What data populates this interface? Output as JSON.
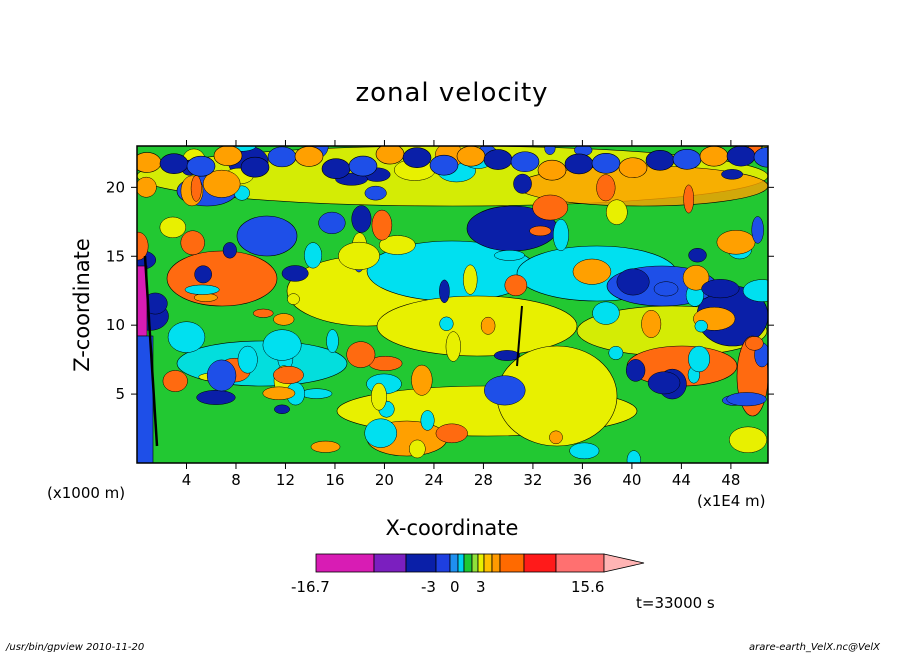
{
  "chart_data": {
    "type": "heatmap",
    "title": "zonal velocity",
    "xlabel": "X-coordinate",
    "ylabel": "Z-coordinate",
    "x_unit_left": "(x1000 m)",
    "x_unit_right": "(x1E4 m)",
    "x_ticks": [
      "4",
      "8",
      "12",
      "16",
      "20",
      "24",
      "28",
      "32",
      "36",
      "40",
      "44",
      "48"
    ],
    "x_tick_values": [
      4,
      8,
      12,
      16,
      20,
      24,
      28,
      32,
      36,
      40,
      44,
      48
    ],
    "xlim": [
      0,
      51
    ],
    "y_ticks": [
      "5",
      "10",
      "15",
      "20"
    ],
    "y_tick_values": [
      5,
      10,
      15,
      20
    ],
    "ylim": [
      0,
      23
    ],
    "colorbar": {
      "min_label": "-16.7",
      "max_label": "15.6",
      "mid_labels": [
        "-3",
        "0",
        "3"
      ],
      "colors": [
        "#d81cb4",
        "#7b1fbf",
        "#0a1fa8",
        "#1e3fe0",
        "#1f8ff0",
        "#00d2f0",
        "#1ec832",
        "#8fe13a",
        "#e8f000",
        "#ffc000",
        "#ff9a00",
        "#ff6a00",
        "#ff1a1a",
        "#ff7070",
        "#ffb4b4"
      ]
    },
    "field_colors": {
      "c_m3": "#0a1fa8",
      "c_m2": "#1e4fe8",
      "c_m1": "#00e0f0",
      "c_0": "#22c832",
      "c_p1": "#e8f000",
      "c_p2": "#ffa000",
      "c_p3": "#ff6a10",
      "c_p4": "#d81cb4"
    },
    "time_label": "t=33000 s"
  },
  "footer": {
    "left": "/usr/bin/gpview   2010-11-20",
    "right": "arare-earth_VelX.nc@VelX"
  }
}
